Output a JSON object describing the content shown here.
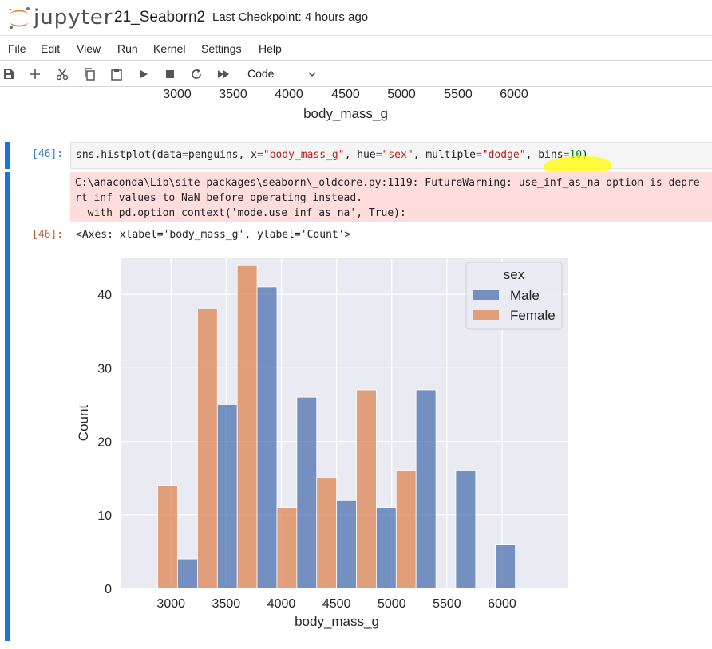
{
  "header": {
    "logo_text": "jupyter",
    "notebook_name": "21_Seaborn2",
    "checkpoint": "Last Checkpoint: 4 hours ago"
  },
  "menu": [
    "File",
    "Edit",
    "View",
    "Run",
    "Kernel",
    "Settings",
    "Help"
  ],
  "toolbar": {
    "icons": [
      "save-icon",
      "add-cell-icon",
      "cut-icon",
      "copy-icon",
      "paste-icon",
      "run-icon",
      "stop-icon",
      "restart-icon",
      "run-all-icon"
    ],
    "cell_type": "Code"
  },
  "previous_output": {
    "ticks": [
      "3000",
      "3500",
      "4000",
      "4500",
      "5000",
      "5500",
      "6000"
    ],
    "xlabel": "body_mass_g"
  },
  "cell": {
    "in_prompt": "[46]:",
    "out_prompt": "[46]:",
    "code": {
      "p1": "sns.histplot(data",
      "o1": "=",
      "p2": "penguins, x",
      "o2": "=",
      "s1": "\"body_mass_g\"",
      "p3": ", hue",
      "o3": "=",
      "s2": "\"sex\"",
      "p4": ", multiple",
      "o4": "=",
      "s3": "\"dodge\"",
      "p5": ", bins",
      "o5": "=",
      "n1": "10",
      "p6": ")"
    },
    "stderr": [
      "C:\\anaconda\\Lib\\site-packages\\seaborn\\_oldcore.py:1119: FutureWarning: use_inf_as_na option is depre",
      "rt inf values to NaN before operating instead.",
      "  with pd.option_context('mode.use_inf_as_na', True):"
    ],
    "output_repr": "<Axes: xlabel='body_mass_g', ylabel='Count'>"
  },
  "chart_data": {
    "type": "bar",
    "xlabel": "body_mass_g",
    "ylabel": "Count",
    "xlim": [
      2550,
      6600
    ],
    "ylim": [
      0,
      45
    ],
    "xticks": [
      3000,
      3500,
      4000,
      4500,
      5000,
      5500,
      6000
    ],
    "yticks": [
      0,
      10,
      20,
      30,
      40
    ],
    "grid": true,
    "legend": {
      "title": "sex",
      "placement": "top-right"
    },
    "bin_edges": [
      2700,
      3060,
      3420,
      3780,
      4140,
      4500,
      4860,
      5220,
      5580,
      5940,
      6300
    ],
    "series": [
      {
        "name": "Male",
        "color": "#4c72b0",
        "values": [
          0,
          4,
          25,
          41,
          26,
          12,
          11,
          27,
          16,
          6
        ]
      },
      {
        "name": "Female",
        "color": "#dd8452",
        "values": [
          14,
          38,
          44,
          11,
          15,
          27,
          16,
          0,
          0,
          0
        ]
      }
    ],
    "background": "#eaeaf2"
  }
}
